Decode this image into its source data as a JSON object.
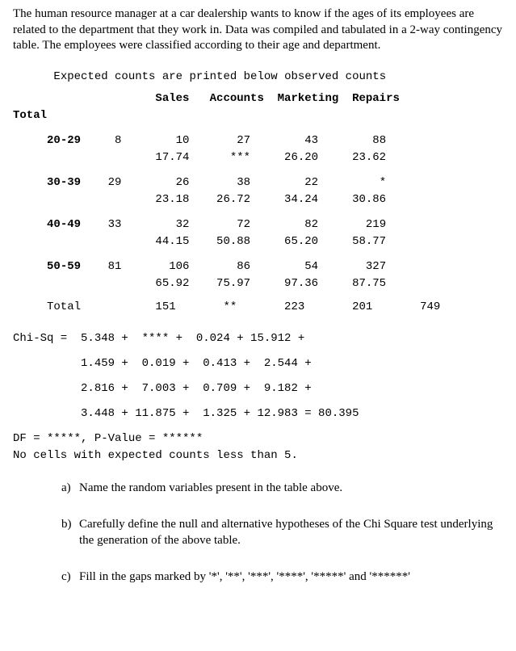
{
  "problem_statement": "The human resource manager at a car dealership wants to know if the ages of its employees are related to the department that they work in. Data was compiled and tabulated in a 2-way contingency table. The employees were classified according to their age and department.",
  "header_line": "Expected counts are printed below observed counts",
  "columns_line": "                     Sales   Accounts  Marketing  Repairs",
  "total_label": "Total",
  "rows": [
    {
      "age": "20-29",
      "obs": [
        "8",
        "10",
        "27",
        "43",
        "88"
      ],
      "exp": [
        "",
        "17.74",
        "***",
        "26.20",
        "23.62"
      ]
    },
    {
      "age": "30-39",
      "obs": [
        "29",
        "26",
        "38",
        "22",
        "*"
      ],
      "exp": [
        "",
        "23.18",
        "26.72",
        "34.24",
        "30.86"
      ]
    },
    {
      "age": "40-49",
      "obs": [
        "33",
        "32",
        "72",
        "82",
        "219"
      ],
      "exp": [
        "",
        "44.15",
        "50.88",
        "65.20",
        "58.77"
      ]
    },
    {
      "age": "50-59",
      "obs": [
        "81",
        "106",
        "86",
        "54",
        "327"
      ],
      "exp": [
        "",
        "65.92",
        "75.97",
        "97.36",
        "87.75"
      ]
    }
  ],
  "totals_line": "     Total           151       **       223       201       749",
  "chisq_lines": [
    "Chi-Sq =  5.348 +  **** +  0.024 + 15.912 +",
    "          1.459 +  0.019 +  0.413 +  2.544 +",
    "          2.816 +  7.003 +  0.709 +  9.182 +",
    "          3.448 + 11.875 +  1.325 + 12.983 = 80.395"
  ],
  "df_line": "DF = *****, P-Value = ******",
  "nocells_line": "No cells with expected counts less than 5.",
  "questions": [
    {
      "label": "a)",
      "text": "Name the random variables present in the table above."
    },
    {
      "label": "b)",
      "text": "Carefully define the null and alternative hypotheses of the Chi Square test underlying the generation of the above table."
    },
    {
      "label": "c)",
      "text": "Fill in the gaps marked by '*', '**', '***', '****', '*****' and '******'"
    }
  ]
}
